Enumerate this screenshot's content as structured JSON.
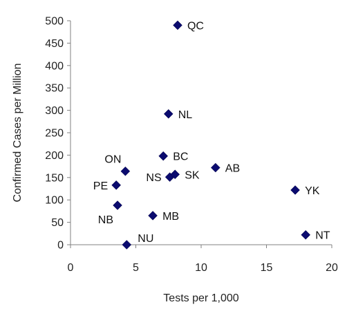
{
  "chart_data": {
    "type": "scatter",
    "title": "",
    "xlabel": "Tests per 1,000",
    "ylabel": "Confirmed Cases per Million",
    "xlim": [
      0,
      20
    ],
    "ylim": [
      0,
      500
    ],
    "x_ticks": [
      0,
      5,
      10,
      15,
      20
    ],
    "y_ticks": [
      0,
      50,
      100,
      150,
      200,
      250,
      300,
      350,
      400,
      450,
      500
    ],
    "x_tick_labels": [
      "0",
      "5",
      "10",
      "15",
      "20"
    ],
    "y_tick_labels": [
      "0",
      "50",
      "100",
      "150",
      "200",
      "250",
      "300",
      "350",
      "400",
      "450",
      "500"
    ],
    "grid": false,
    "legend": "none",
    "marker_color": "#0b0b6f",
    "points": [
      {
        "label": "QC",
        "x": 8.2,
        "y": 490,
        "label_pos": "right"
      },
      {
        "label": "NL",
        "x": 7.5,
        "y": 292,
        "label_pos": "right"
      },
      {
        "label": "BC",
        "x": 7.1,
        "y": 198,
        "label_pos": "right"
      },
      {
        "label": "ON",
        "x": 4.2,
        "y": 164,
        "label_pos": "above-left"
      },
      {
        "label": "AB",
        "x": 11.1,
        "y": 172,
        "label_pos": "right"
      },
      {
        "label": "NS",
        "x": 7.6,
        "y": 151,
        "label_pos": "left"
      },
      {
        "label": "SK",
        "x": 8.0,
        "y": 157,
        "label_pos": "right"
      },
      {
        "label": "PE",
        "x": 3.5,
        "y": 133,
        "label_pos": "left"
      },
      {
        "label": "YK",
        "x": 17.2,
        "y": 122,
        "label_pos": "right"
      },
      {
        "label": "NB",
        "x": 3.6,
        "y": 88,
        "label_pos": "below-left"
      },
      {
        "label": "MB",
        "x": 6.3,
        "y": 65,
        "label_pos": "right"
      },
      {
        "label": "NT",
        "x": 18.0,
        "y": 22,
        "label_pos": "right"
      },
      {
        "label": "NU",
        "x": 4.3,
        "y": 0,
        "label_pos": "above-right"
      }
    ]
  }
}
